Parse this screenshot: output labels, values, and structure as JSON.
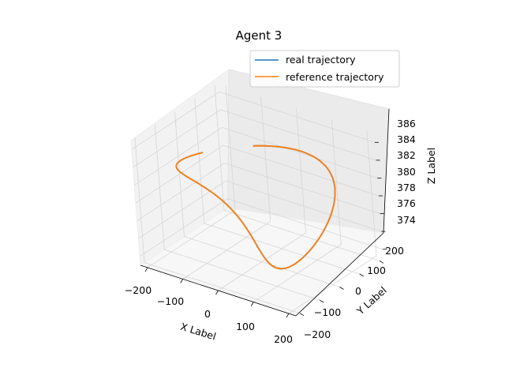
{
  "chart_data": {
    "type": "line",
    "projection": "3d",
    "title": "Agent 3",
    "xlabel": "X Label",
    "ylabel": "Y Label",
    "zlabel": "Z Label",
    "xlim": [
      -220,
      220
    ],
    "ylim": [
      -220,
      220
    ],
    "zlim": [
      373,
      387
    ],
    "xticks": [
      -200,
      -100,
      0,
      100,
      200
    ],
    "xtick_labels": [
      "−200",
      "−100",
      "0",
      "100",
      "200"
    ],
    "yticks": [
      -200,
      -100,
      0,
      100,
      200
    ],
    "ytick_labels": [
      "−200",
      "−100",
      "0",
      "100",
      "200"
    ],
    "zticks": [
      374,
      376,
      378,
      380,
      382,
      384,
      386
    ],
    "ztick_labels": [
      "374",
      "376",
      "378",
      "380",
      "382",
      "384",
      "386"
    ],
    "grid": true,
    "legend_position": "top-right",
    "series": [
      {
        "name": "real trajectory",
        "color": "#1f77b4",
        "curve": {
          "param": "t",
          "t_range": [
            0,
            0.92
          ],
          "x": "200*sin(2*pi*t)",
          "y": "200*sin(2*pi*t)*cos(2*pi*t)",
          "z": "380 + 6*cos(2*pi*t)"
        }
      },
      {
        "name": "reference trajectory",
        "color": "#ff7f0e",
        "curve": {
          "param": "t",
          "t_range": [
            0,
            0.92
          ],
          "x": "200*sin(2*pi*t)",
          "y": "200*sin(2*pi*t)*cos(2*pi*t)",
          "z": "380 + 6*cos(2*pi*t)"
        }
      }
    ]
  }
}
